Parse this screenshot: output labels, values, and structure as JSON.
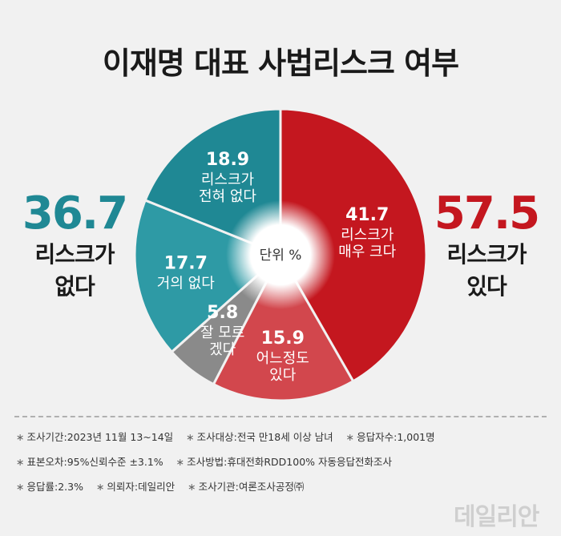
{
  "title": "이재명 대표 사법리스크 여부",
  "left_summary": {
    "value": "36.7",
    "label": "리스크가\n없다",
    "color": "#1f8894"
  },
  "right_summary": {
    "value": "57.5",
    "label": "리스크가\n있다",
    "color": "#c4171f"
  },
  "chart_data": {
    "type": "pie",
    "unit_label": "단위 %",
    "slices": [
      {
        "label": "리스크가 매우 크다",
        "lines": [
          "리스크가",
          "매우 크다"
        ],
        "value": 41.7,
        "color": "#c4171f"
      },
      {
        "label": "어느정도 있다",
        "lines": [
          "어느정도",
          "있다"
        ],
        "value": 15.9,
        "color": "#d2474d"
      },
      {
        "label": "잘 모르겠다",
        "lines": [
          "잘 모르",
          "겠다"
        ],
        "value": 5.8,
        "color": "#8a8a8a"
      },
      {
        "label": "거의 없다",
        "lines": [
          "거의 없다"
        ],
        "value": 17.7,
        "color": "#2e9aa5"
      },
      {
        "label": "리스크가 전혀 없다",
        "lines": [
          "리스크가",
          "전혀 없다"
        ],
        "value": 18.9,
        "color": "#1f8894"
      }
    ]
  },
  "notes": [
    [
      "조사기간:2023년 11월 13~14일",
      "조사대상:전국 만18세 이상 남녀",
      "응답자수:1,001명"
    ],
    [
      "표본오차:95%신뢰수준 ±3.1%",
      "조사방법:휴대전화RDD100% 자동응답전화조사"
    ],
    [
      "응답률:2.3%",
      "의뢰자:데일리안",
      "조사기관:여론조사공정㈜"
    ]
  ],
  "watermark": "데일리안"
}
